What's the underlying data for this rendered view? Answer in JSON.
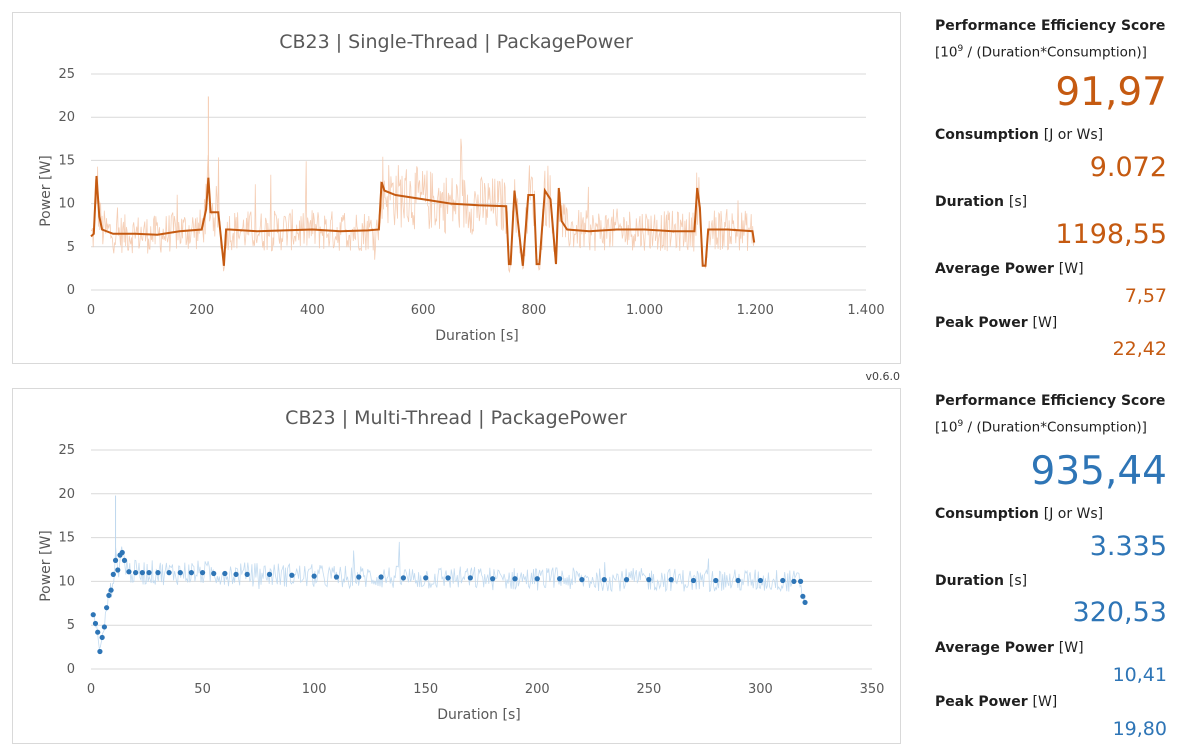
{
  "charts": [
    {
      "title": "CB23 | Single-Thread | PackagePower",
      "xlabel": "Duration [s]",
      "ylabel": "Power [W]",
      "color_line": "#c55a11",
      "color_band": "#f4c9ad",
      "x_ticks": [
        "0",
        "200",
        "400",
        "600",
        "800",
        "1.000",
        "1.200",
        "1.400"
      ],
      "y_ticks": [
        "0",
        "5",
        "10",
        "15",
        "20",
        "25"
      ]
    },
    {
      "title": "CB23 | Multi-Thread | PackagePower",
      "xlabel": "Duration [s]",
      "ylabel": "Power [W]",
      "color_line": "#2e75b6",
      "color_band": "#bdd7ee",
      "x_ticks": [
        "0",
        "50",
        "100",
        "150",
        "200",
        "250",
        "300",
        "350"
      ],
      "y_ticks": [
        "0",
        "5",
        "10",
        "15",
        "20",
        "25"
      ]
    }
  ],
  "chart_data": [
    {
      "type": "line",
      "title": "CB23 | Single-Thread | PackagePower",
      "xlabel": "Duration [s]",
      "ylabel": "Power [W]",
      "xlim": [
        0,
        1400
      ],
      "ylim": [
        0,
        25
      ],
      "grid": true,
      "legend": "none",
      "series": [
        {
          "role": "smoothed",
          "x": [
            0,
            5,
            10,
            15,
            20,
            40,
            80,
            120,
            160,
            200,
            208,
            212,
            216,
            222,
            230,
            240,
            244,
            250,
            300,
            350,
            400,
            450,
            500,
            520,
            525,
            530,
            550,
            600,
            650,
            700,
            750,
            755,
            758,
            765,
            780,
            790,
            800,
            805,
            810,
            820,
            830,
            840,
            845,
            850,
            860,
            900,
            950,
            1000,
            1050,
            1080,
            1090,
            1095,
            1100,
            1105,
            1110,
            1115,
            1120,
            1150,
            1195,
            1198
          ],
          "y": [
            6.2,
            6.5,
            13.2,
            8.5,
            7.0,
            6.5,
            6.5,
            6.4,
            6.8,
            7.0,
            9.3,
            13.0,
            9.0,
            9.0,
            9.0,
            2.8,
            7.0,
            7.0,
            6.8,
            6.9,
            7.0,
            6.8,
            6.9,
            7.0,
            12.5,
            11.5,
            11.0,
            10.5,
            10.0,
            9.8,
            9.7,
            3.0,
            3.0,
            11.5,
            2.8,
            11.0,
            11.0,
            3.0,
            3.0,
            11.5,
            10.5,
            3.0,
            11.8,
            8.0,
            7.0,
            6.8,
            7.0,
            7.0,
            6.8,
            6.8,
            6.8,
            11.8,
            9.5,
            2.8,
            2.8,
            7.0,
            7.0,
            7.0,
            6.8,
            5.5
          ]
        },
        {
          "role": "raw-band",
          "min": 2.0,
          "max": 22.4
        }
      ]
    },
    {
      "type": "scatter",
      "title": "CB23 | Multi-Thread | PackagePower",
      "xlabel": "Duration [s]",
      "ylabel": "Power [W]",
      "xlim": [
        0,
        350
      ],
      "ylim": [
        0,
        25
      ],
      "grid": true,
      "legend": "none",
      "series": [
        {
          "role": "points",
          "x": [
            1,
            2,
            3,
            4,
            5,
            6,
            7,
            8,
            9,
            10,
            11,
            12,
            13,
            14,
            15,
            17,
            20,
            23,
            26,
            30,
            35,
            40,
            45,
            50,
            55,
            60,
            65,
            70,
            80,
            90,
            100,
            110,
            120,
            130,
            140,
            150,
            160,
            170,
            180,
            190,
            200,
            210,
            220,
            230,
            240,
            250,
            260,
            270,
            280,
            290,
            300,
            310,
            315,
            318,
            319,
            320
          ],
          "y": [
            6.2,
            5.2,
            4.2,
            2.0,
            3.6,
            4.8,
            7.0,
            8.4,
            9.0,
            10.8,
            12.4,
            11.3,
            13.0,
            13.3,
            12.4,
            11.1,
            11.0,
            11.0,
            11.0,
            11.0,
            11.0,
            11.0,
            11.0,
            11.0,
            10.9,
            10.9,
            10.8,
            10.8,
            10.8,
            10.7,
            10.6,
            10.5,
            10.5,
            10.5,
            10.4,
            10.4,
            10.4,
            10.4,
            10.3,
            10.3,
            10.3,
            10.3,
            10.2,
            10.2,
            10.2,
            10.2,
            10.2,
            10.1,
            10.1,
            10.1,
            10.1,
            10.1,
            10.0,
            10.0,
            8.3,
            7.6
          ]
        },
        {
          "role": "raw-band",
          "min": 2.0,
          "max": 19.8
        }
      ]
    }
  ],
  "version": "v0.6.0",
  "summaries": [
    {
      "accent": "#c55a11",
      "score_label": "Performance Efficiency Score",
      "formula_base": "[10",
      "formula_exp": "9",
      "formula_rest": " / (Duration*Consumption)]",
      "score_value": "91,97",
      "consumption_label": "Consumption",
      "consumption_unit": "[J or Ws]",
      "consumption_value": "9.072",
      "duration_label": "Duration",
      "duration_unit": "[s]",
      "duration_value": "1198,55",
      "avg_label": "Average Power",
      "avg_unit": "[W]",
      "avg_value": "7,57",
      "peak_label": "Peak Power",
      "peak_unit": "[W]",
      "peak_value": "22,42"
    },
    {
      "accent": "#2e75b6",
      "score_label": "Performance Efficiency Score",
      "formula_base": "[10",
      "formula_exp": "9",
      "formula_rest": " / (Duration*Consumption)]",
      "score_value": "935,44",
      "consumption_label": "Consumption",
      "consumption_unit": "[J or Ws]",
      "consumption_value": "3.335",
      "duration_label": "Duration",
      "duration_unit": "[s]",
      "duration_value": "320,53",
      "avg_label": "Average Power",
      "avg_unit": "[W]",
      "avg_value": "10,41",
      "peak_label": "Peak Power",
      "peak_unit": "[W]",
      "peak_value": "19,80"
    }
  ]
}
